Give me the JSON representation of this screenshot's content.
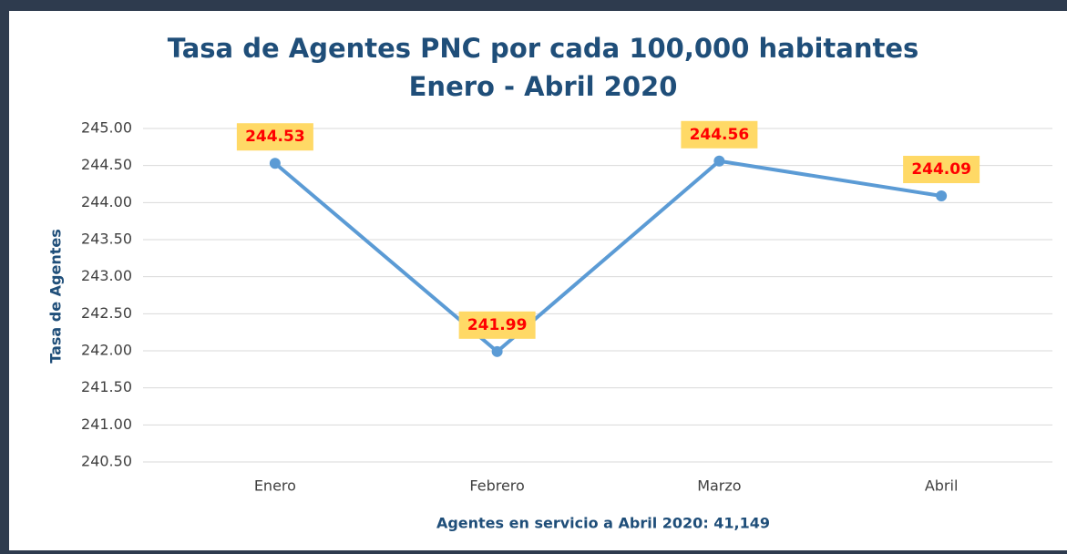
{
  "chart_data": {
    "type": "line",
    "title": "Tasa de Agentes PNC por cada 100,000 habitantes",
    "subtitle": "Enero - Abril 2020",
    "x_label": "Agentes en servicio a Abril 2020: 41,149",
    "y_label": "Tasa de Agentes",
    "categories": [
      "Enero",
      "Febrero",
      "Marzo",
      "Abril"
    ],
    "series": [
      {
        "name": "Tasa de Agentes",
        "color": "#5b9bd5",
        "values": [
          244.53,
          241.99,
          244.56,
          244.09
        ]
      }
    ],
    "ylim": [
      240.5,
      245.0
    ],
    "yticks": [
      {
        "value": 240.5,
        "label": "240.50"
      },
      {
        "value": 241.0,
        "label": "241.00"
      },
      {
        "value": 241.5,
        "label": "241.50"
      },
      {
        "value": 242.0,
        "label": "242.00"
      },
      {
        "value": 242.5,
        "label": "242.50"
      },
      {
        "value": 243.0,
        "label": "243.00"
      },
      {
        "value": 243.5,
        "label": "243.50"
      },
      {
        "value": 244.0,
        "label": "244.00"
      },
      {
        "value": 244.5,
        "label": "244.50"
      },
      {
        "value": 245.0,
        "label": "245.00"
      }
    ],
    "grid": true
  }
}
